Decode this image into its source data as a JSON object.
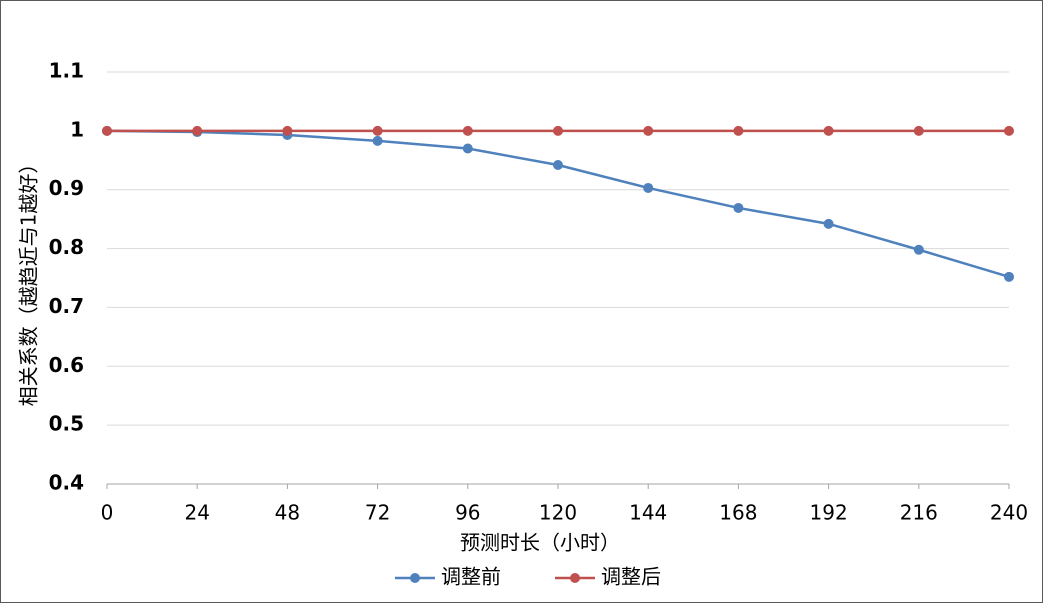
{
  "chart_data": {
    "type": "line",
    "x_label": "预测时长（小时）",
    "y_label": "相关系数（越趋近与1越好）",
    "x": [
      0,
      24,
      48,
      72,
      96,
      120,
      144,
      168,
      192,
      216,
      240
    ],
    "series": [
      {
        "name": "调整前",
        "color": "#4f81bd",
        "values": [
          1.0,
          0.998,
          0.993,
          0.983,
          0.97,
          0.942,
          0.903,
          0.869,
          0.842,
          0.798,
          0.752
        ]
      },
      {
        "name": "调整后",
        "color": "#c0504d",
        "values": [
          1,
          1,
          1,
          1,
          1,
          1,
          1,
          1,
          1,
          1,
          1
        ]
      }
    ],
    "xlim": [
      0,
      240
    ],
    "xticks": [
      0,
      24,
      48,
      72,
      96,
      120,
      144,
      168,
      192,
      216,
      240
    ],
    "ylim": [
      0.4,
      1.1
    ],
    "yticks": [
      0.4,
      0.5,
      0.6,
      0.7,
      0.8,
      0.9,
      1,
      1.1
    ],
    "grid": true,
    "legend": "bottom"
  }
}
